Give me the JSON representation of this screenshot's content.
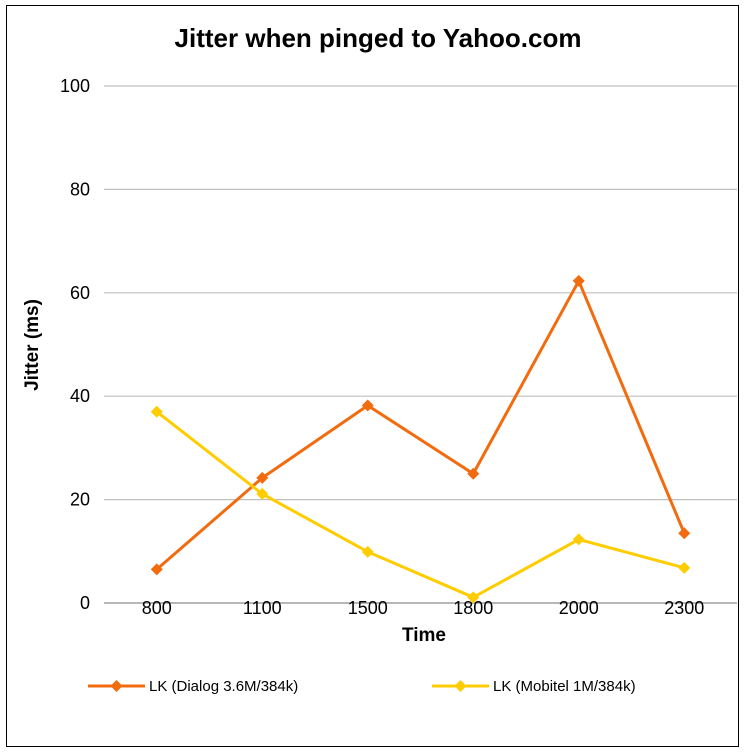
{
  "chart_data": {
    "type": "line",
    "title": "Jitter when pinged to Yahoo.com",
    "xlabel": "Time",
    "ylabel": "Jitter (ms)",
    "categories": [
      "800",
      "1100",
      "1500",
      "1800",
      "2000",
      "2300"
    ],
    "ylim": [
      0,
      100
    ],
    "yticks": [
      "0",
      "20",
      "40",
      "60",
      "80",
      "100"
    ],
    "grid": true,
    "legend_position": "bottom",
    "series": [
      {
        "name": "LK (Dialog 3.6M/384k)",
        "color": "#f26b0f",
        "values": [
          6.5,
          24.2,
          38.2,
          25.0,
          62.3,
          13.5
        ]
      },
      {
        "name": "LK (Mobitel 1M/384k)",
        "color": "#ffcc00",
        "values": [
          37.0,
          21.1,
          9.9,
          1.1,
          12.3,
          6.8
        ]
      }
    ]
  }
}
